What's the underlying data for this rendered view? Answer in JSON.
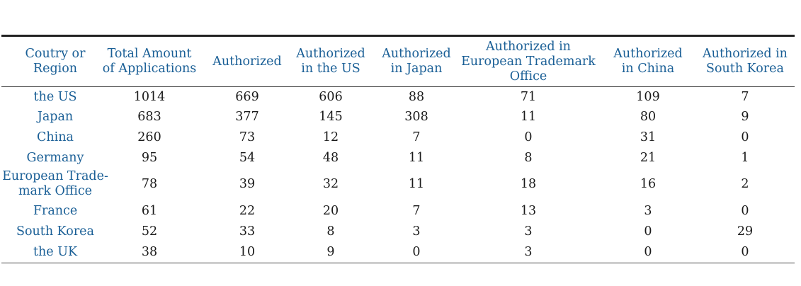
{
  "table": {
    "headers": [
      [
        "Coutry or",
        "Region"
      ],
      [
        "Total Amount",
        "of Applications"
      ],
      [
        "Authorized"
      ],
      [
        "Authorized",
        "in the US"
      ],
      [
        "Authorized",
        "in Japan"
      ],
      [
        "Authorized in",
        "European Trademark",
        "Office"
      ],
      [
        "Authorized",
        "in China"
      ],
      [
        "Authorized in",
        "South Korea"
      ]
    ],
    "rows": [
      {
        "region": [
          "the US"
        ],
        "values": [
          "1014",
          "669",
          "606",
          "88",
          "71",
          "109",
          "7"
        ]
      },
      {
        "region": [
          "Japan"
        ],
        "values": [
          "683",
          "377",
          "145",
          "308",
          "11",
          "80",
          "9"
        ]
      },
      {
        "region": [
          "China"
        ],
        "values": [
          "260",
          "73",
          "12",
          "7",
          "0",
          "31",
          "0"
        ]
      },
      {
        "region": [
          "Germany"
        ],
        "values": [
          "95",
          "54",
          "48",
          "11",
          "8",
          "21",
          "1"
        ]
      },
      {
        "region": [
          "European Trade-",
          "mark Office"
        ],
        "values": [
          "78",
          "39",
          "32",
          "11",
          "18",
          "16",
          "2"
        ]
      },
      {
        "region": [
          "France"
        ],
        "values": [
          "61",
          "22",
          "20",
          "7",
          "13",
          "3",
          "0"
        ]
      },
      {
        "region": [
          "South Korea"
        ],
        "values": [
          "52",
          "33",
          "8",
          "3",
          "3",
          "0",
          "29"
        ]
      },
      {
        "region": [
          "the UK"
        ],
        "values": [
          "38",
          "10",
          "9",
          "0",
          "3",
          "0",
          "0"
        ]
      }
    ]
  }
}
